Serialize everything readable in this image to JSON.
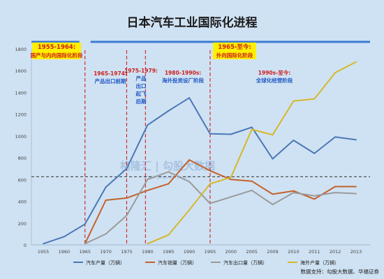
{
  "colors": {
    "background": "#cfe2f3",
    "title": "#1a1a1a",
    "car_production": "#4a78b6",
    "car_sales": "#c5612b",
    "car_exports": "#9a9a9a",
    "overseas_production": "#d6b72b",
    "phase_line": "#cc2222",
    "phase_text": "#1f57c3",
    "highlight": "#ffef00",
    "highlight_text": "#cc1f1f",
    "band": "#3b7bd1",
    "reference_line": "#333333"
  },
  "chart_data": {
    "type": "line",
    "title": "日本汽车工业国际化进程",
    "categories": [
      "1955",
      "1960",
      "1965",
      "1970",
      "1975",
      "1980",
      "1985",
      "1990",
      "1995",
      "2000",
      "2005",
      "2009",
      "2010",
      "2011",
      "2012",
      "2013"
    ],
    "ylim": [
      0,
      1800
    ],
    "yticks": [
      0,
      200,
      400,
      600,
      800,
      1000,
      1200,
      1400,
      1600,
      1800
    ],
    "grid": false,
    "legend_position": "bottom",
    "reference_line_value": 625,
    "series": [
      {
        "name": "汽车产量（万辆）",
        "color_key": "car_production",
        "values": [
          10,
          75,
          190,
          530,
          700,
          1100,
          1230,
          1350,
          1020,
          1015,
          1080,
          790,
          960,
          840,
          990,
          965
        ]
      },
      {
        "name": "汽车销量（万辆）",
        "color_key": "car_sales",
        "values": [
          null,
          null,
          10,
          410,
          430,
          500,
          560,
          780,
          680,
          600,
          585,
          465,
          495,
          420,
          535,
          535
        ]
      },
      {
        "name": "汽车出口量（万辆）",
        "color_key": "car_exports",
        "values": [
          null,
          null,
          10,
          100,
          270,
          600,
          670,
          580,
          380,
          440,
          500,
          370,
          480,
          450,
          480,
          470
        ]
      },
      {
        "name": "海外产量（万辆）",
        "color_key": "overseas_production",
        "values": [
          null,
          null,
          null,
          null,
          null,
          10,
          90,
          320,
          560,
          620,
          1060,
          1010,
          1320,
          1340,
          1580,
          1680
        ]
      }
    ],
    "phases": [
      {
        "label": "1955-1964:",
        "sub": "国产与内向国际化阶段",
        "style": "highlight"
      },
      {
        "label": "1965-至今:",
        "sub": "外向国际化阶段",
        "style": "highlight"
      },
      {
        "label": "1965-1974:",
        "sub": "产品出口前期",
        "style": "plain"
      },
      {
        "label": "1975-1979:",
        "sub_lines": [
          "产品",
          "出口",
          "起飞",
          "后期"
        ],
        "style": "plain"
      },
      {
        "label": "1980-1990s:",
        "sub": "海外投资设厂阶段",
        "style": "plain"
      },
      {
        "label": "1990s-至今:",
        "sub": "全球化经营阶段",
        "style": "plain"
      }
    ],
    "phase_boundaries": [
      "1965",
      "1975",
      "1980",
      "1995"
    ],
    "watermark": "格隆汇 | 勾股大数据",
    "watermark_url": "www.gogudata.com",
    "source": "数据支持：勾股大数据、华福证券"
  }
}
